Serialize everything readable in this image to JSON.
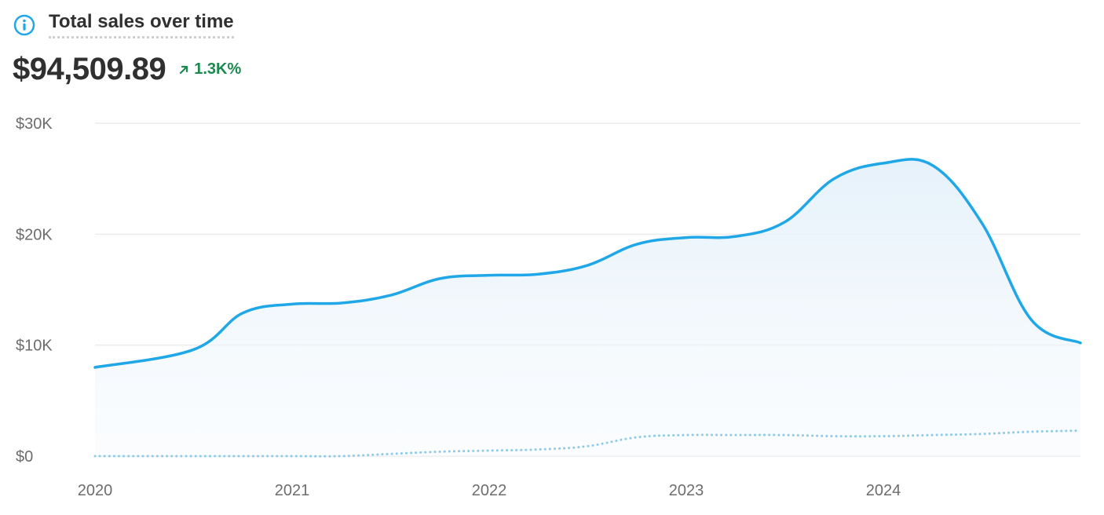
{
  "header": {
    "title": "Total sales over time",
    "icon": "info-icon"
  },
  "metric": {
    "value": "$94,509.89",
    "change": "1.3K%",
    "change_icon": "arrow-up-right-icon",
    "change_color": "#1a8a4f"
  },
  "colors": {
    "primary_line": "#1fa7e8",
    "comparison_line": "#8fcbe8",
    "area_fill": "#e8f3fb",
    "grid": "#ececec"
  },
  "chart_data": {
    "type": "area",
    "x": [
      2020.0,
      2020.5,
      2020.75,
      2021.0,
      2021.25,
      2021.5,
      2021.75,
      2022.0,
      2022.25,
      2022.5,
      2022.75,
      2023.0,
      2023.25,
      2023.5,
      2023.75,
      2024.0,
      2024.25,
      2024.5,
      2024.75,
      2025.0
    ],
    "series": [
      {
        "values": [
          8000,
          9600,
          12900,
          13700,
          13800,
          14500,
          16000,
          16300,
          16400,
          17200,
          19100,
          19700,
          19800,
          21100,
          25000,
          26400,
          26200,
          21000,
          12300,
          10200
        ],
        "style": "solid"
      },
      {
        "values": [
          0,
          0,
          0,
          0,
          0,
          200,
          400,
          500,
          600,
          900,
          1700,
          1900,
          1900,
          1900,
          1800,
          1800,
          1900,
          2000,
          2200,
          2300
        ],
        "style": "dotted"
      }
    ],
    "x_ticks": [
      {
        "value": 2020,
        "label": "2020"
      },
      {
        "value": 2021,
        "label": "2021"
      },
      {
        "value": 2022,
        "label": "2022"
      },
      {
        "value": 2023,
        "label": "2023"
      },
      {
        "value": 2024,
        "label": "2024"
      }
    ],
    "y_ticks": [
      {
        "value": 0,
        "label": "$0"
      },
      {
        "value": 10000,
        "label": "$10K"
      },
      {
        "value": 20000,
        "label": "$20K"
      },
      {
        "value": 30000,
        "label": "$30K"
      }
    ],
    "xlim": [
      2020.0,
      2025.0
    ],
    "ylim": [
      0,
      30000
    ],
    "grid": true,
    "legend": "none"
  }
}
